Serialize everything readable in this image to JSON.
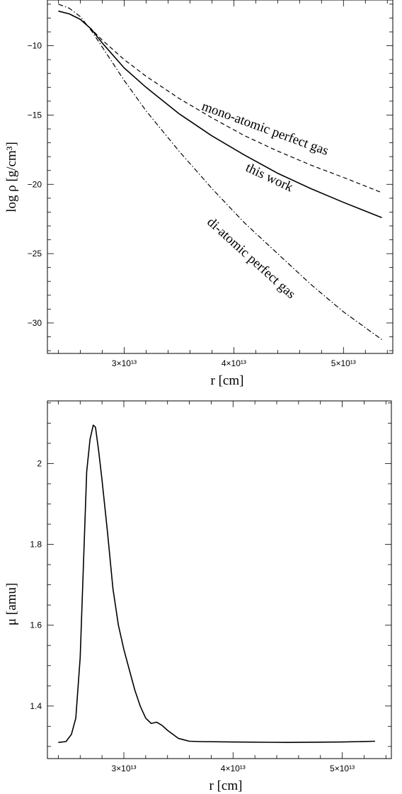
{
  "chart_data": [
    {
      "type": "line",
      "xlabel": "r [cm]",
      "ylabel": "log ρ [g/cm³]",
      "xlim": [
        23000000000000.0,
        54500000000000.0
      ],
      "ylim": [
        -32.2,
        -6.7
      ],
      "x_ticks": [
        {
          "value": 30000000000000.0,
          "label": "3×10¹³"
        },
        {
          "value": 40000000000000.0,
          "label": "4×10¹³"
        },
        {
          "value": 50000000000000.0,
          "label": "5×10¹³"
        }
      ],
      "y_ticks": [
        {
          "value": -10,
          "label": "−10"
        },
        {
          "value": -15,
          "label": "−15"
        },
        {
          "value": -20,
          "label": "−20"
        },
        {
          "value": -25,
          "label": "−25"
        },
        {
          "value": -30,
          "label": "−30"
        }
      ],
      "grid": false,
      "series": [
        {
          "name": "mono-atomic perfect gas",
          "style": "dashed",
          "x": [
            24000000000000.0,
            25000000000000.0,
            26000000000000.0,
            27000000000000.0,
            28000000000000.0,
            30000000000000.0,
            32000000000000.0,
            35000000000000.0,
            38000000000000.0,
            41000000000000.0,
            44000000000000.0,
            47000000000000.0,
            50000000000000.0,
            53500000000000.0
          ],
          "y": [
            -7.5,
            -7.7,
            -8.1,
            -8.8,
            -9.6,
            -11.0,
            -12.2,
            -13.8,
            -15.2,
            -16.5,
            -17.6,
            -18.6,
            -19.5,
            -20.6
          ]
        },
        {
          "name": "this work",
          "style": "solid",
          "x": [
            24000000000000.0,
            25000000000000.0,
            26000000000000.0,
            27000000000000.0,
            28000000000000.0,
            30000000000000.0,
            32000000000000.0,
            35000000000000.0,
            38000000000000.0,
            41000000000000.0,
            44000000000000.0,
            47000000000000.0,
            50000000000000.0,
            53500000000000.0
          ],
          "y": [
            -7.5,
            -7.7,
            -8.1,
            -8.8,
            -9.8,
            -11.6,
            -13.0,
            -14.9,
            -16.5,
            -17.9,
            -19.2,
            -20.3,
            -21.3,
            -22.4
          ]
        },
        {
          "name": "di-atomic perfect gas",
          "style": "dashdot",
          "x": [
            24000000000000.0,
            25000000000000.0,
            26000000000000.0,
            27000000000000.0,
            28000000000000.0,
            30000000000000.0,
            32000000000000.0,
            35000000000000.0,
            38000000000000.0,
            41000000000000.0,
            44000000000000.0,
            47000000000000.0,
            50000000000000.0,
            53500000000000.0
          ],
          "y": [
            -7.0,
            -7.3,
            -7.9,
            -8.9,
            -10.1,
            -12.5,
            -14.7,
            -17.6,
            -20.3,
            -22.8,
            -25.0,
            -27.2,
            -29.2,
            -31.2
          ]
        }
      ],
      "annotations": [
        {
          "text": "mono-atomic perfect gas",
          "x": 37000000000000.0,
          "y": -14.6,
          "angle": 20
        },
        {
          "text": "this work",
          "x": 41000000000000.0,
          "y": -19.0,
          "angle": 25
        },
        {
          "text": "di-atomic perfect gas",
          "x": 37500000000000.0,
          "y": -22.8,
          "angle": 42
        }
      ]
    },
    {
      "type": "line",
      "xlabel": "r [cm]",
      "ylabel": "μ [amu]",
      "xlim": [
        23000000000000.0,
        54500000000000.0
      ],
      "ylim": [
        1.27,
        2.155
      ],
      "x_ticks": [
        {
          "value": 30000000000000.0,
          "label": "3×10¹³"
        },
        {
          "value": 40000000000000.0,
          "label": "4×10¹³"
        },
        {
          "value": 50000000000000.0,
          "label": "5×10¹³"
        }
      ],
      "y_ticks": [
        {
          "value": 1.4,
          "label": "1.4"
        },
        {
          "value": 1.6,
          "label": "1.6"
        },
        {
          "value": 1.8,
          "label": "1.8"
        },
        {
          "value": 2.0,
          "label": "2"
        }
      ],
      "grid": false,
      "series": [
        {
          "name": "",
          "style": "solid",
          "x": [
            24000000000000.0,
            24700000000000.0,
            25200000000000.0,
            25600000000000.0,
            26000000000000.0,
            26300000000000.0,
            26600000000000.0,
            26900000000000.0,
            27200000000000.0,
            27400000000000.0,
            27700000000000.0,
            28000000000000.0,
            28500000000000.0,
            29000000000000.0,
            29500000000000.0,
            30000000000000.0,
            30500000000000.0,
            31000000000000.0,
            31500000000000.0,
            32000000000000.0,
            32500000000000.0,
            33000000000000.0,
            33500000000000.0,
            34000000000000.0,
            35000000000000.0,
            36000000000000.0,
            37000000000000.0,
            40000000000000.0,
            45000000000000.0,
            50000000000000.0,
            53000000000000.0
          ],
          "y": [
            1.31,
            1.312,
            1.33,
            1.37,
            1.52,
            1.75,
            1.98,
            2.06,
            2.095,
            2.09,
            2.03,
            1.96,
            1.83,
            1.69,
            1.6,
            1.54,
            1.49,
            1.44,
            1.4,
            1.37,
            1.357,
            1.36,
            1.352,
            1.34,
            1.32,
            1.313,
            1.312,
            1.311,
            1.31,
            1.311,
            1.313
          ]
        }
      ],
      "annotations": []
    }
  ]
}
